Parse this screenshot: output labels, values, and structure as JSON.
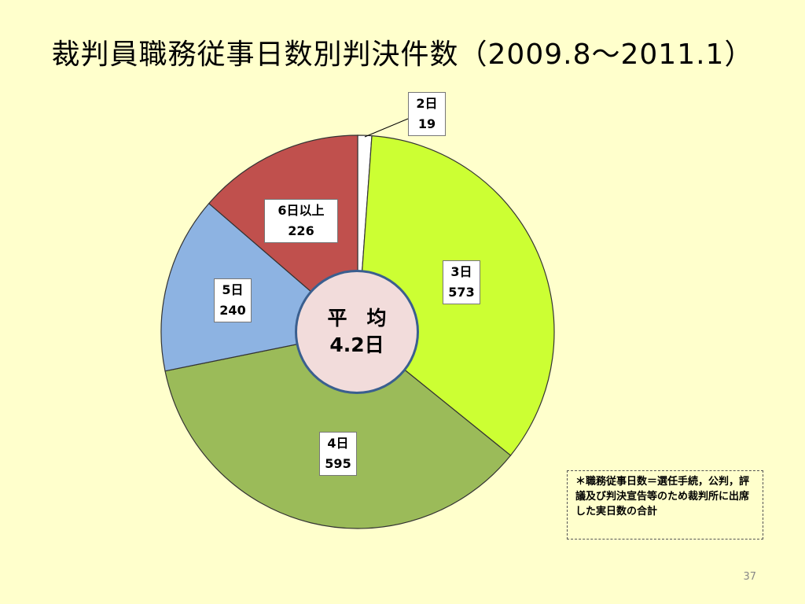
{
  "slide": {
    "title": "裁判員職務従事日数別判決件数（2009.8～2011.1）",
    "footnote": "＊職務従事日数＝選任手続，公判，評議及び判決宣告等のため裁判所に出席した実日数の合計",
    "page_number": "37"
  },
  "average": {
    "label": "平　均",
    "value": "4.2日"
  },
  "chart_data": {
    "type": "pie",
    "title": "裁判員職務従事日数別判決件数（2009.8～2011.1）",
    "start_angle_deg": 0,
    "direction": "clockwise",
    "slices": [
      {
        "category": "2日",
        "value": 19,
        "value_label": "19",
        "color": "#ffffff"
      },
      {
        "category": "3日",
        "value": 573,
        "value_label": "573",
        "color": "#ccff33"
      },
      {
        "category": "4日",
        "value": 595,
        "value_label": "595",
        "color": "#9bbb59"
      },
      {
        "category": "5日",
        "value": 240,
        "value_label": "240",
        "color": "#8db3e2"
      },
      {
        "category": "6日以上",
        "value": 226,
        "value_label": "226",
        "color": "#c0504d"
      }
    ],
    "outline_color": "#333333"
  }
}
